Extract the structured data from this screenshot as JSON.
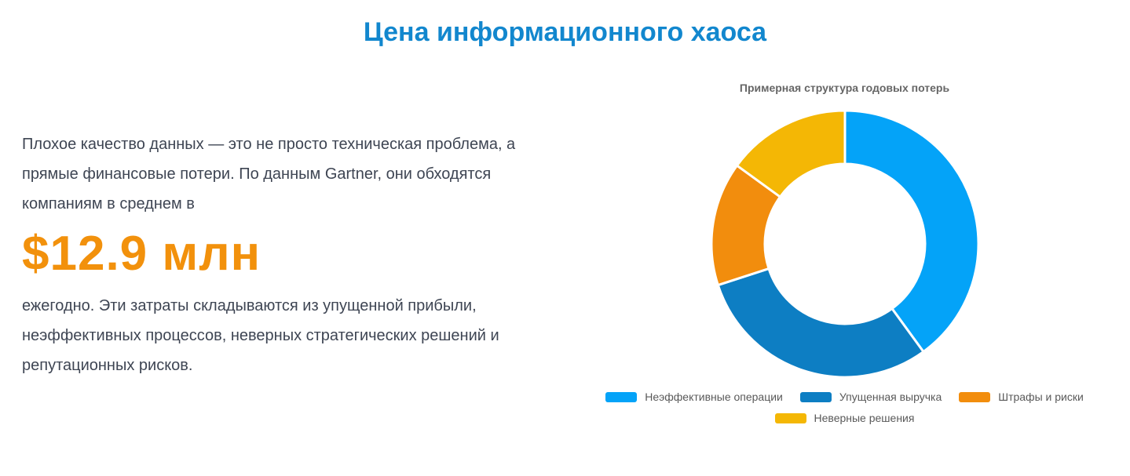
{
  "page": {
    "title": "Цена информационного хаоса"
  },
  "intro": {
    "text_before": "Плохое качество данных — это не просто техническая проблема, а прямые финансовые потери. По данным Gartner, они обходятся компаниям в среднем в",
    "highlight": "$12.9 млн",
    "text_after": "ежегодно. Эти затраты складываются из упущенной прибыли, неэффективных процессов, неверных стратегических решений и репутационных рисков."
  },
  "chart_data": {
    "type": "pie",
    "variant": "doughnut",
    "title": "Примерная структура годовых потерь",
    "labels": [
      "Неэффективные операции",
      "Упущенная выручка",
      "Штрафы и риски",
      "Неверные решения"
    ],
    "values": [
      40,
      30,
      15,
      15
    ],
    "unit": "percent-estimated-from-arc-angles",
    "colors": [
      "#04a3f8",
      "#0d7ec3",
      "#f28d0d",
      "#f4b705"
    ],
    "inner_radius_ratio": 0.6,
    "start_angle": "top-clockwise",
    "slice_border_color": "#ffffff",
    "legend_position": "bottom",
    "data_labels": "none"
  },
  "colors": {
    "title_blue": "#1287ce",
    "body_text": "#3e4553",
    "highlight_orange": "#f2910c",
    "chart_title_gray": "#666666",
    "legend_text_gray": "#595959",
    "background": "#ffffff"
  }
}
